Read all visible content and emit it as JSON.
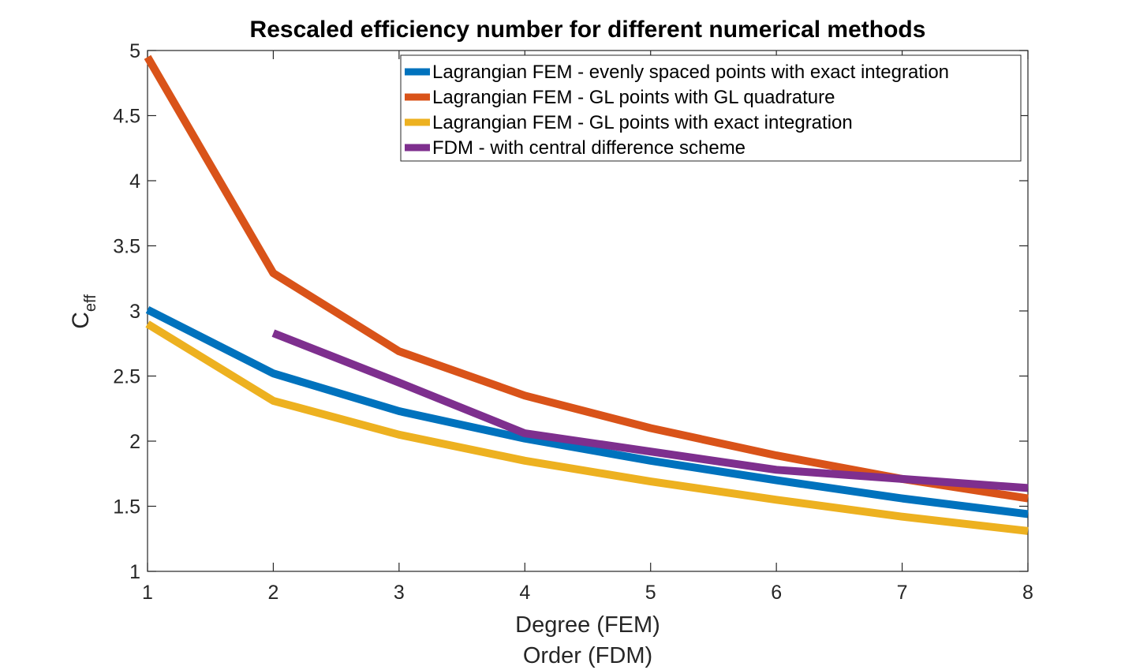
{
  "chart_data": {
    "type": "line",
    "title": "Rescaled efficiency number for different numerical methods",
    "xlabel": [
      "Degree (FEM)",
      "Order (FDM)"
    ],
    "ylabel": {
      "main": "C",
      "subscript": "eff"
    },
    "xlim": [
      1,
      8
    ],
    "ylim": [
      1,
      5
    ],
    "x_ticks": [
      "1",
      "2",
      "3",
      "4",
      "5",
      "6",
      "7",
      "8"
    ],
    "y_ticks": [
      "1",
      "1.5",
      "2",
      "2.5",
      "3",
      "3.5",
      "4",
      "4.5",
      "5"
    ],
    "x_tick_values": [
      1,
      2,
      3,
      4,
      5,
      6,
      7,
      8
    ],
    "y_tick_values": [
      1,
      1.5,
      2,
      2.5,
      3,
      3.5,
      4,
      4.5,
      5
    ],
    "grid": false,
    "legend_position": "top-right",
    "series": [
      {
        "name": "Lagrangian FEM - evenly spaced points with exact integration",
        "color": "#0072BD",
        "x": [
          1,
          2,
          3,
          4,
          5,
          6,
          7,
          8
        ],
        "y": [
          3.01,
          2.52,
          2.23,
          2.02,
          1.85,
          1.7,
          1.56,
          1.44
        ]
      },
      {
        "name": "Lagrangian FEM - GL points with GL quadrature",
        "color": "#D95319",
        "x": [
          1,
          2,
          3,
          4,
          5,
          6,
          7,
          8
        ],
        "y": [
          4.95,
          3.29,
          2.69,
          2.35,
          2.1,
          1.89,
          1.71,
          1.56
        ]
      },
      {
        "name": "Lagrangian FEM - GL points with exact integration",
        "color": "#EDB120",
        "x": [
          1,
          2,
          3,
          4,
          5,
          6,
          7,
          8
        ],
        "y": [
          2.9,
          2.31,
          2.05,
          1.85,
          1.69,
          1.55,
          1.42,
          1.31
        ]
      },
      {
        "name": "FDM - with central difference scheme",
        "color": "#7E2F8E",
        "x": [
          2,
          3,
          4,
          5,
          6,
          7,
          8
        ],
        "y": [
          2.83,
          2.45,
          2.06,
          1.92,
          1.78,
          1.71,
          1.64
        ]
      }
    ]
  }
}
